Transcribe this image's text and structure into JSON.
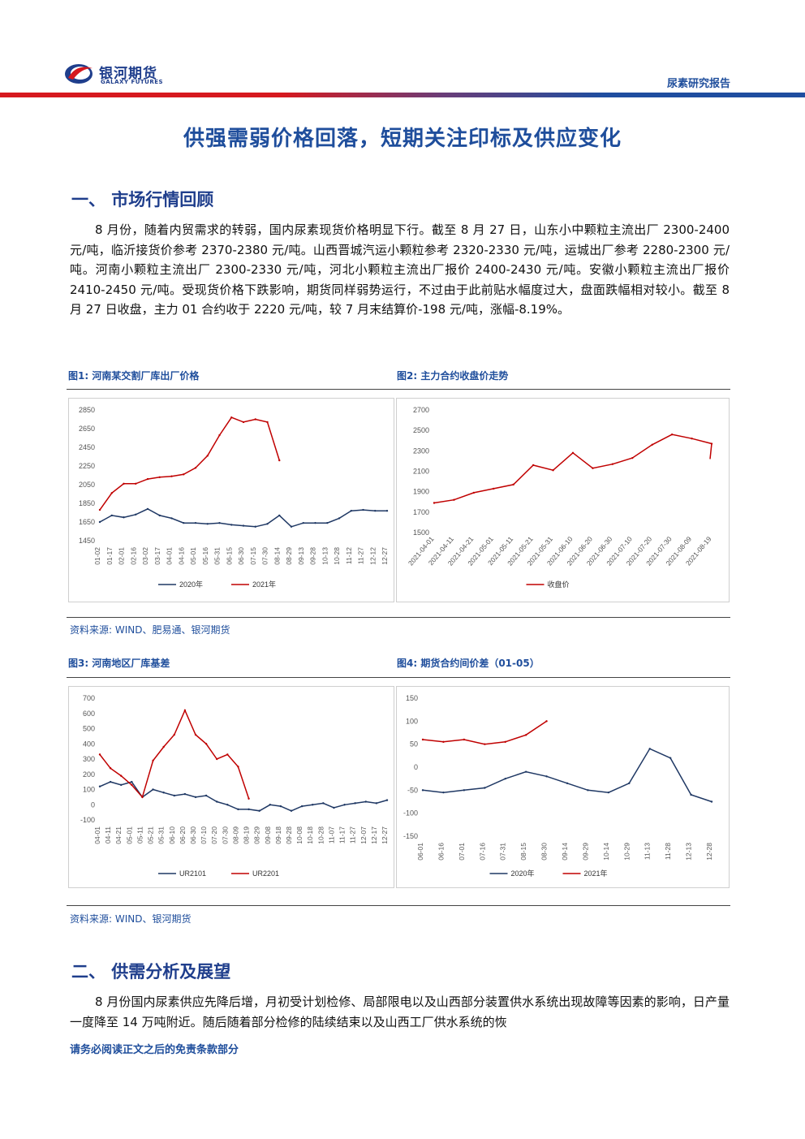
{
  "header": {
    "logo_cn": "银河期货",
    "logo_en": "GALAXY FUTURES",
    "report_type": "尿素研究报告",
    "colors": {
      "red": "#d6191f",
      "blue": "#1f4e9c"
    }
  },
  "title": "供强需弱价格回落，短期关注印标及供应变化",
  "section1": {
    "title": "一、  市场行情回顾",
    "body": "8 月份，随着内贸需求的转弱，国内尿素现货价格明显下行。截至 8 月 27 日，山东小中颗粒主流出厂 2300-2400 元/吨，临沂接货价参考 2370-2380 元/吨。山西晋城汽运小颗粒参考 2320-2330 元/吨，运城出厂参考 2280-2300 元/吨。河南小颗粒主流出厂 2300-2330 元/吨，河北小颗粒主流出厂报价 2400-2430 元/吨。安徽小颗粒主流出厂报价 2410-2450 元/吨。受现货价格下跌影响，期货同样弱势运行，不过由于此前贴水幅度过大，盘面跌幅相对较小。截至 8 月 27 日收盘，主力 01 合约收于 2220 元/吨，较 7 月末结算价-198 元/吨，涨幅-8.19%。"
  },
  "figures": {
    "fig1_label": "图1:  河南某交割厂库出厂价格",
    "fig2_label": "图2:  主力合约收盘价走势",
    "fig3_label": "图3:  河南地区厂库基差",
    "fig4_label": "图4:  期货合约间价差（01-05）",
    "source1": "资料来源: WIND、肥易通、银河期货",
    "source2": "资料来源: WIND、银河期货"
  },
  "section2": {
    "title": "二、  供需分析及展望",
    "body": "8 月份国内尿素供应先降后增，月初受计划检修、局部限电以及山西部分装置供水系统出现故障等因素的影响，日产量一度降至 14 万吨附近。随后随着部分检修的陆续结束以及山西工厂供水系统的恢"
  },
  "disclaimer": "请务必阅读正文之后的免责条款部分",
  "chart_data": [
    {
      "type": "line",
      "categories": [
        "01-02",
        "01-17",
        "02-01",
        "02-16",
        "03-02",
        "03-17",
        "04-01",
        "04-16",
        "05-01",
        "05-16",
        "05-31",
        "06-15",
        "06-30",
        "07-15",
        "07-30",
        "08-14",
        "08-29",
        "09-13",
        "09-28",
        "10-13",
        "10-28",
        "11-12",
        "11-27",
        "12-12",
        "12-27"
      ],
      "series": [
        {
          "name": "2020年",
          "color": "#1f3864",
          "values": [
            1650,
            1720,
            1700,
            1730,
            1790,
            1720,
            1690,
            1640,
            1640,
            1630,
            1640,
            1620,
            1610,
            1600,
            1630,
            1720,
            1600,
            1640,
            1640,
            1640,
            1690,
            1770,
            1780,
            1770,
            1770
          ]
        },
        {
          "name": "2021年",
          "color": "#c00000",
          "values": [
            1780,
            1960,
            2060,
            2060,
            2110,
            2130,
            2140,
            2160,
            2230,
            2360,
            2580,
            2770,
            2720,
            2750,
            2720,
            2310,
            null,
            null,
            null,
            null,
            null,
            null,
            null,
            null,
            null
          ]
        }
      ],
      "ylim": [
        1450,
        2850
      ],
      "yticks": [
        "1450",
        "1650",
        "1850",
        "2050",
        "2250",
        "2450",
        "2650",
        "2850"
      ],
      "grid": false,
      "legend": "bottom"
    },
    {
      "type": "line",
      "categories": [
        "2021-04-01",
        "2021-04-11",
        "2021-04-21",
        "2021-05-01",
        "2021-05-11",
        "2021-05-21",
        "2021-05-31",
        "2021-06-10",
        "2021-06-20",
        "2021-06-30",
        "2021-07-10",
        "2021-07-20",
        "2021-07-30",
        "2021-08-09",
        "2021-08-19"
      ],
      "series": [
        {
          "name": "收盘价",
          "color": "#c00000",
          "values": [
            1790,
            1820,
            1890,
            1930,
            1970,
            2160,
            2110,
            2280,
            2130,
            2170,
            2230,
            2360,
            2460,
            2420,
            2370
          ]
        }
      ],
      "last_value": 2220,
      "ylim": [
        1500,
        2700
      ],
      "yticks": [
        "1500",
        "1700",
        "1900",
        "2100",
        "2300",
        "2500",
        "2700"
      ],
      "grid": false,
      "legend": "bottom"
    },
    {
      "type": "line",
      "categories": [
        "04-01",
        "04-11",
        "04-21",
        "05-01",
        "05-11",
        "05-21",
        "05-31",
        "06-10",
        "06-20",
        "06-30",
        "07-10",
        "07-20",
        "07-30",
        "08-09",
        "08-19",
        "08-29",
        "09-08",
        "09-18",
        "09-28",
        "10-08",
        "10-18",
        "10-28",
        "11-07",
        "11-17",
        "11-27",
        "12-07",
        "12-17",
        "12-27"
      ],
      "series": [
        {
          "name": "UR2101",
          "color": "#1f3864",
          "values": [
            120,
            150,
            130,
            150,
            50,
            100,
            80,
            60,
            70,
            50,
            60,
            20,
            0,
            -30,
            -30,
            -40,
            0,
            -10,
            -40,
            -10,
            0,
            10,
            -20,
            0,
            10,
            20,
            10,
            30
          ]
        },
        {
          "name": "UR2201",
          "color": "#c00000",
          "values": [
            330,
            240,
            190,
            130,
            50,
            290,
            380,
            460,
            620,
            460,
            400,
            300,
            330,
            250,
            40,
            null,
            null,
            null,
            null,
            null,
            null,
            null,
            null,
            null,
            null,
            null,
            null,
            null
          ]
        }
      ],
      "ylim": [
        -100,
        700
      ],
      "yticks": [
        "700",
        "600",
        "500",
        "400",
        "300",
        "200",
        "100",
        "0",
        "-100"
      ],
      "grid": false,
      "legend": "bottom"
    },
    {
      "type": "line",
      "categories": [
        "06-01",
        "06-16",
        "07-01",
        "07-16",
        "07-31",
        "08-15",
        "08-30",
        "09-14",
        "09-29",
        "10-14",
        "10-29",
        "11-13",
        "11-28",
        "12-13",
        "12-28"
      ],
      "series": [
        {
          "name": "2020年",
          "color": "#1f3864",
          "values": [
            -50,
            -55,
            -50,
            -45,
            -25,
            -10,
            -20,
            -35,
            -50,
            -55,
            -35,
            40,
            20,
            -60,
            -75
          ]
        },
        {
          "name": "2021年",
          "color": "#c00000",
          "values": [
            60,
            55,
            60,
            50,
            55,
            70,
            100,
            null,
            null,
            null,
            null,
            null,
            null,
            null,
            null
          ]
        }
      ],
      "ylim": [
        -150,
        150
      ],
      "yticks": [
        "150",
        "100",
        "50",
        "0",
        "-50",
        "-100",
        "-150"
      ],
      "grid": false,
      "legend": "bottom"
    }
  ]
}
